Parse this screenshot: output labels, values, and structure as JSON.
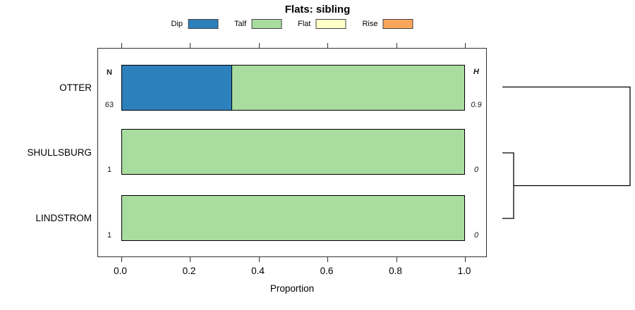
{
  "chart_data": {
    "type": "bar",
    "orientation": "horizontal",
    "stacked": true,
    "title": "Flats: sibling",
    "categories": [
      "OTTER",
      "SHULLSBURG",
      "LINDSTROM"
    ],
    "series": [
      {
        "name": "Dip",
        "color": "#2C80BC",
        "values": [
          0.32,
          0,
          0
        ]
      },
      {
        "name": "Talf",
        "color": "#A9DC9F",
        "values": [
          0.68,
          1,
          1
        ]
      },
      {
        "name": "Flat",
        "color": "#FFFFC8",
        "values": [
          0,
          0,
          0
        ]
      },
      {
        "name": "Rise",
        "color": "#F9A65A",
        "values": [
          0,
          0,
          0
        ]
      }
    ],
    "columns": {
      "left_header": "N",
      "right_header": "H",
      "left_values": [
        "63",
        "1",
        "1"
      ],
      "right_values": [
        "0.9",
        "0",
        "0"
      ]
    },
    "xlabel": "Proportion",
    "xticks": [
      "0.0",
      "0.2",
      "0.4",
      "0.6",
      "0.8",
      "1.0"
    ],
    "xlim": [
      0,
      1
    ],
    "grid": false,
    "legend_position": "top",
    "dendrogram": {
      "side": "right",
      "leaves": [
        "OTTER",
        "SHULLSBURG",
        "LINDSTROM"
      ],
      "merges": [
        {
          "pair": [
            "SHULLSBURG",
            "LINDSTROM"
          ],
          "height": "low"
        },
        {
          "pair": [
            "OTTER",
            "(SHULLSBURG,LINDSTROM)"
          ],
          "height": "high"
        }
      ]
    }
  }
}
